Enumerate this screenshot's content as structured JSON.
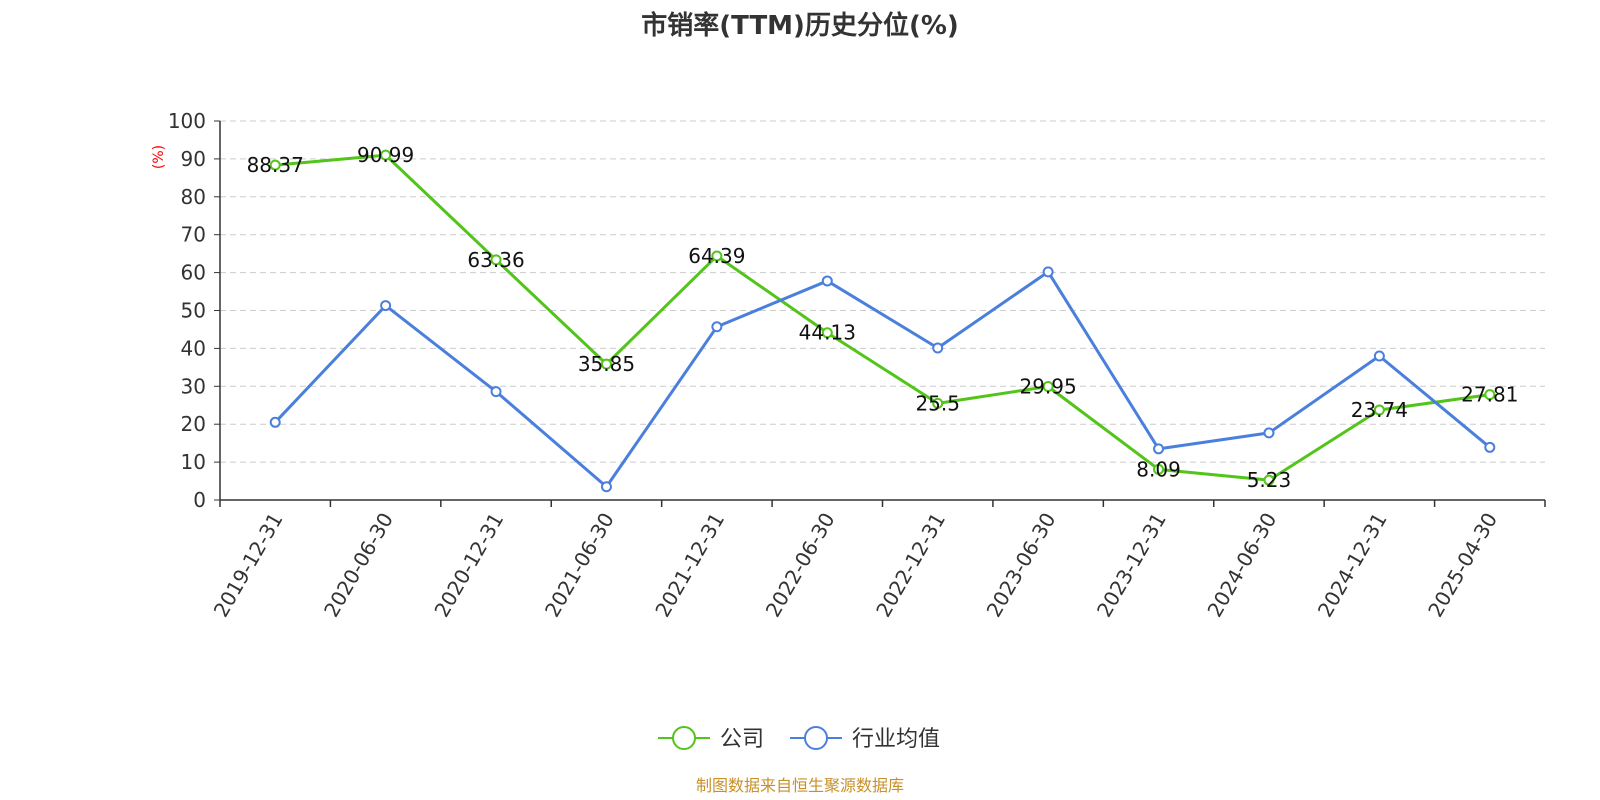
{
  "chart_data": {
    "type": "line",
    "title": "市销率(TTM)历史分位(%)",
    "ylabel": "(%)",
    "ylim": [
      0,
      100
    ],
    "yticks": [
      0,
      10,
      20,
      30,
      40,
      50,
      60,
      70,
      80,
      90,
      100
    ],
    "categories": [
      "2019-12-31",
      "2020-06-30",
      "2020-12-31",
      "2021-06-30",
      "2021-12-31",
      "2022-06-30",
      "2022-12-31",
      "2023-06-30",
      "2023-12-31",
      "2024-06-30",
      "2024-12-31",
      "2025-04-30"
    ],
    "series": [
      {
        "name": "公司",
        "color": "#52c41a",
        "values": [
          88.37,
          90.99,
          63.36,
          35.85,
          64.39,
          44.13,
          25.5,
          29.95,
          8.09,
          5.23,
          23.74,
          27.81
        ],
        "show_labels": true
      },
      {
        "name": "行业均值",
        "color": "#4a7fdc",
        "values": [
          20.5,
          51.3,
          28.6,
          3.5,
          45.7,
          57.8,
          40.1,
          60.2,
          13.5,
          17.7,
          38.0,
          13.9
        ],
        "show_labels": false
      }
    ],
    "grid": true,
    "legend_position": "bottom",
    "source": "制图数据来自恒生聚源数据库"
  }
}
